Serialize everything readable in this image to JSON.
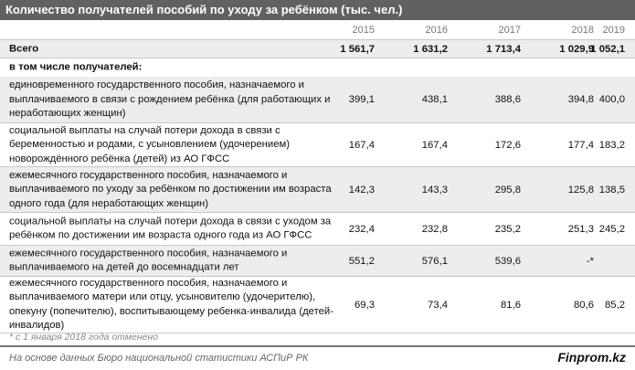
{
  "title": "Количество получателей пособий по уходу за ребёнком (тыс. чел.)",
  "years": [
    "2015",
    "2016",
    "2017",
    "2018",
    "2019"
  ],
  "total": {
    "label": "Всего",
    "values": [
      "1 561,7",
      "1 631,2",
      "1 713,4",
      "1 029,9",
      "1 052,1"
    ]
  },
  "subheading": "в том числе получателей:",
  "rows": [
    {
      "label": "единовременного государственного пособия, назначаемого и выплачиваемого в связи с рождением ребёнка (для работающих и неработающих женщин)",
      "values": [
        "399,1",
        "438,1",
        "388,6",
        "394,8",
        "400,0"
      ]
    },
    {
      "label": "социальной выплаты на случай потери дохода в связи с беременностью и родами, с усыновлением (удочерением) новорождённого ребёнка (детей) из АО ГФСС",
      "values": [
        "167,4",
        "167,4",
        "172,6",
        "177,4",
        "183,2"
      ]
    },
    {
      "label": "ежемесячного государственного пособия, назначаемого и выплачиваемого по уходу за ребёнком по достижении им возраста одного года (для неработающих женщин)",
      "values": [
        "142,3",
        "143,3",
        "295,8",
        "125,8",
        "138,5"
      ]
    },
    {
      "label": "социальной выплаты на случай потери дохода в связи с уходом за ребёнком по достижении им возраста одного года из АО ГФСС",
      "values": [
        "232,4",
        "232,8",
        "235,2",
        "251,3",
        "245,2"
      ]
    },
    {
      "label": "ежемесячного государственного пособия, назначаемого и выплачиваемого на детей до восемнадцати лет",
      "values": [
        "551,2",
        "576,1",
        "539,6",
        "-*",
        ""
      ]
    },
    {
      "label": "ежемесячного государственного пособия, назначаемого и выплачиваемого матери или отцу, усыновителю (удочерителю), опекуну (попечителю), воспитывающему ребенка-инвалида (детей-инвалидов)",
      "values": [
        "69,3",
        "73,4",
        "81,6",
        "80,6",
        "85,2"
      ]
    }
  ],
  "footnote": "* с 1 января 2018 года отменено",
  "source": "На основе данных Бюро национальной статистики АСПиР РК",
  "brand": "Finprom.kz"
}
